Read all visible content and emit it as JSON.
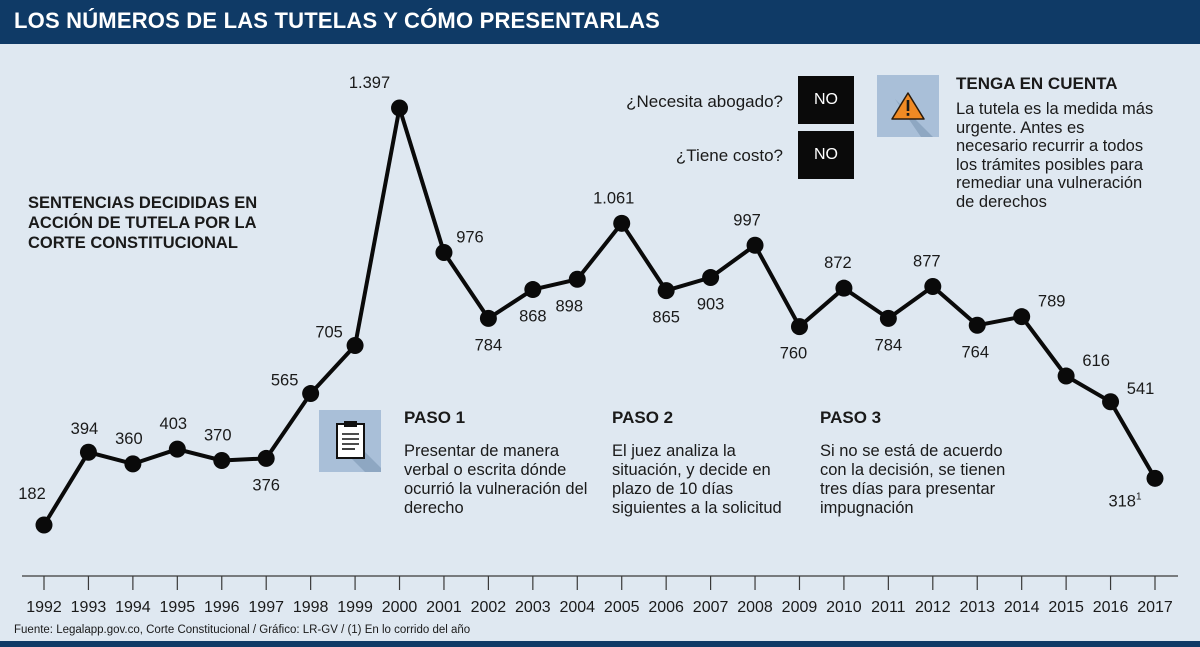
{
  "header": {
    "title": "LOS NÚMEROS DE LAS TUTELAS Y CÓMO PRESENTARLAS"
  },
  "colors": {
    "header_bg": "#0f3a66",
    "background": "#dfe8f1",
    "line": "#0a0a0a",
    "icon_bg": "#a9bfd8",
    "warning_icon": "#f08a24"
  },
  "questions": [
    {
      "question": "¿Necesita abogado?",
      "answer": "NO"
    },
    {
      "question": "¿Tiene costo?",
      "answer": "NO"
    }
  ],
  "warning": {
    "icon": "warning-icon",
    "title": "TENGA EN CUENTA",
    "text": "La tutela es la medida más urgente. Antes es necesario recurrir a todos los trámites posibles para remediar una vulneración de derechos"
  },
  "steps": [
    {
      "title": "PASO 1",
      "text": "Presentar de manera verbal o escrita dónde ocurrió la vulneración del derecho",
      "icon": "clipboard-icon"
    },
    {
      "title": "PASO 2",
      "text": "El juez analiza la situación, y decide en plazo de 10 días siguientes a la solicitud"
    },
    {
      "title": "PASO 3",
      "text": "Si no se está de acuerdo con la decisión, se tienen tres días para presentar impugnación"
    }
  ],
  "source": "Fuente: Legalapp.gov.co, Corte Constitucional / Gráfico: LR-GV / (1) En lo corrido del año",
  "chart_data": {
    "type": "line",
    "title": "SENTENCIAS DECIDIDAS EN ACCIÓN DE TUTELA POR LA CORTE CONSTITUCIONAL",
    "categories": [
      "1992",
      "1993",
      "1994",
      "1995",
      "1996",
      "1997",
      "1998",
      "1999",
      "2000",
      "2001",
      "2002",
      "2003",
      "2004",
      "2005",
      "2006",
      "2007",
      "2008",
      "2009",
      "2010",
      "2011",
      "2012",
      "2013",
      "2014",
      "2015",
      "2016",
      "2017"
    ],
    "values": [
      182,
      394,
      360,
      403,
      370,
      376,
      565,
      705,
      1397,
      976,
      784,
      868,
      898,
      1061,
      865,
      903,
      997,
      760,
      872,
      784,
      877,
      764,
      789,
      616,
      541,
      318
    ],
    "value_labels": [
      "182",
      "394",
      "360",
      "403",
      "370",
      "376",
      "565",
      "705",
      "1.397",
      "976",
      "784",
      "868",
      "898",
      "1.061",
      "865",
      "903",
      "997",
      "760",
      "872",
      "784",
      "877",
      "764",
      "789",
      "616",
      "541",
      "318"
    ],
    "footnote_marker": "1",
    "grid": false,
    "legend": "none"
  }
}
